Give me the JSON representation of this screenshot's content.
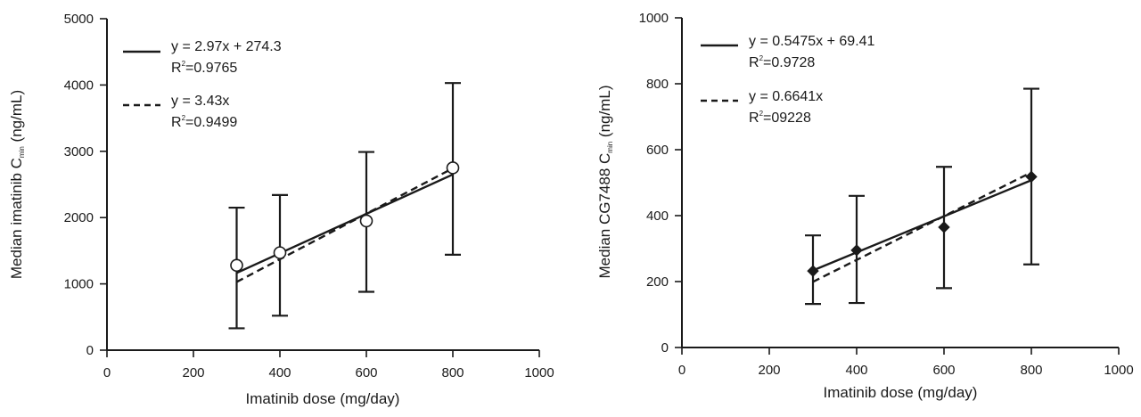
{
  "chart_data": [
    {
      "type": "scatter",
      "xlabel": "Imatinib dose (mg/day)",
      "ylabel": {
        "prefix": "Median imatinib C",
        "subscript": "min",
        "suffix": " (ng/mL)"
      },
      "xlim": [
        0,
        1000
      ],
      "ylim": [
        0,
        5000
      ],
      "xticks": [
        "0",
        "200",
        "400",
        "600",
        "800",
        "1000"
      ],
      "yticks": [
        "0",
        "1000",
        "2000",
        "3000",
        "4000",
        "5000"
      ],
      "xtick_values": [
        0,
        200,
        400,
        600,
        800,
        1000
      ],
      "ytick_values": [
        0,
        1000,
        2000,
        3000,
        4000,
        5000
      ],
      "grid": false,
      "legend_position": "top-left",
      "marker": "open-circle",
      "points": [
        {
          "x": 300,
          "y": 1280,
          "err_low": 330,
          "err_high": 2150
        },
        {
          "x": 400,
          "y": 1470,
          "err_low": 520,
          "err_high": 2340
        },
        {
          "x": 600,
          "y": 1950,
          "err_low": 880,
          "err_high": 2990
        },
        {
          "x": 800,
          "y": 2750,
          "err_low": 1440,
          "err_high": 4030
        }
      ],
      "fits": [
        {
          "style": "solid",
          "slope": 2.97,
          "intercept": 274.3,
          "x_range": [
            300,
            800
          ],
          "equation": "y = 2.97x + 274.3",
          "r2_prefix": "R",
          "r2_sup": "2",
          "r2_value": "=0.9765"
        },
        {
          "style": "dashed",
          "slope": 3.43,
          "intercept": 0,
          "x_range": [
            300,
            800
          ],
          "equation": "y = 3.43x",
          "r2_prefix": "R",
          "r2_sup": "2",
          "r2_value": "=0.9499"
        }
      ]
    },
    {
      "type": "scatter",
      "xlabel": "Imatinib dose (mg/day)",
      "ylabel": {
        "prefix": "Median CG7488 C",
        "subscript": "min",
        "suffix": " (ng/mL)"
      },
      "xlim": [
        0,
        1000
      ],
      "ylim": [
        0,
        1000
      ],
      "xticks": [
        "0",
        "200",
        "400",
        "600",
        "800",
        "1000"
      ],
      "yticks": [
        "0",
        "200",
        "400",
        "600",
        "800",
        "1000"
      ],
      "xtick_values": [
        0,
        200,
        400,
        600,
        800,
        1000
      ],
      "ytick_values": [
        0,
        200,
        400,
        600,
        800,
        1000
      ],
      "grid": false,
      "legend_position": "top-left",
      "marker": "filled-diamond",
      "points": [
        {
          "x": 300,
          "y": 232,
          "err_low": 132,
          "err_high": 340
        },
        {
          "x": 400,
          "y": 295,
          "err_low": 135,
          "err_high": 460
        },
        {
          "x": 600,
          "y": 365,
          "err_low": 180,
          "err_high": 548
        },
        {
          "x": 800,
          "y": 518,
          "err_low": 252,
          "err_high": 785
        }
      ],
      "fits": [
        {
          "style": "solid",
          "slope": 0.5475,
          "intercept": 69.41,
          "x_range": [
            300,
            800
          ],
          "equation": "y = 0.5475x + 69.41",
          "r2_prefix": "R",
          "r2_sup": "2",
          "r2_value": "=0.9728"
        },
        {
          "style": "dashed",
          "slope": 0.6641,
          "intercept": 0,
          "x_range": [
            300,
            800
          ],
          "equation": "y = 0.6641x",
          "r2_prefix": "R",
          "r2_sup": "2",
          "r2_value": "=09228"
        }
      ]
    }
  ]
}
